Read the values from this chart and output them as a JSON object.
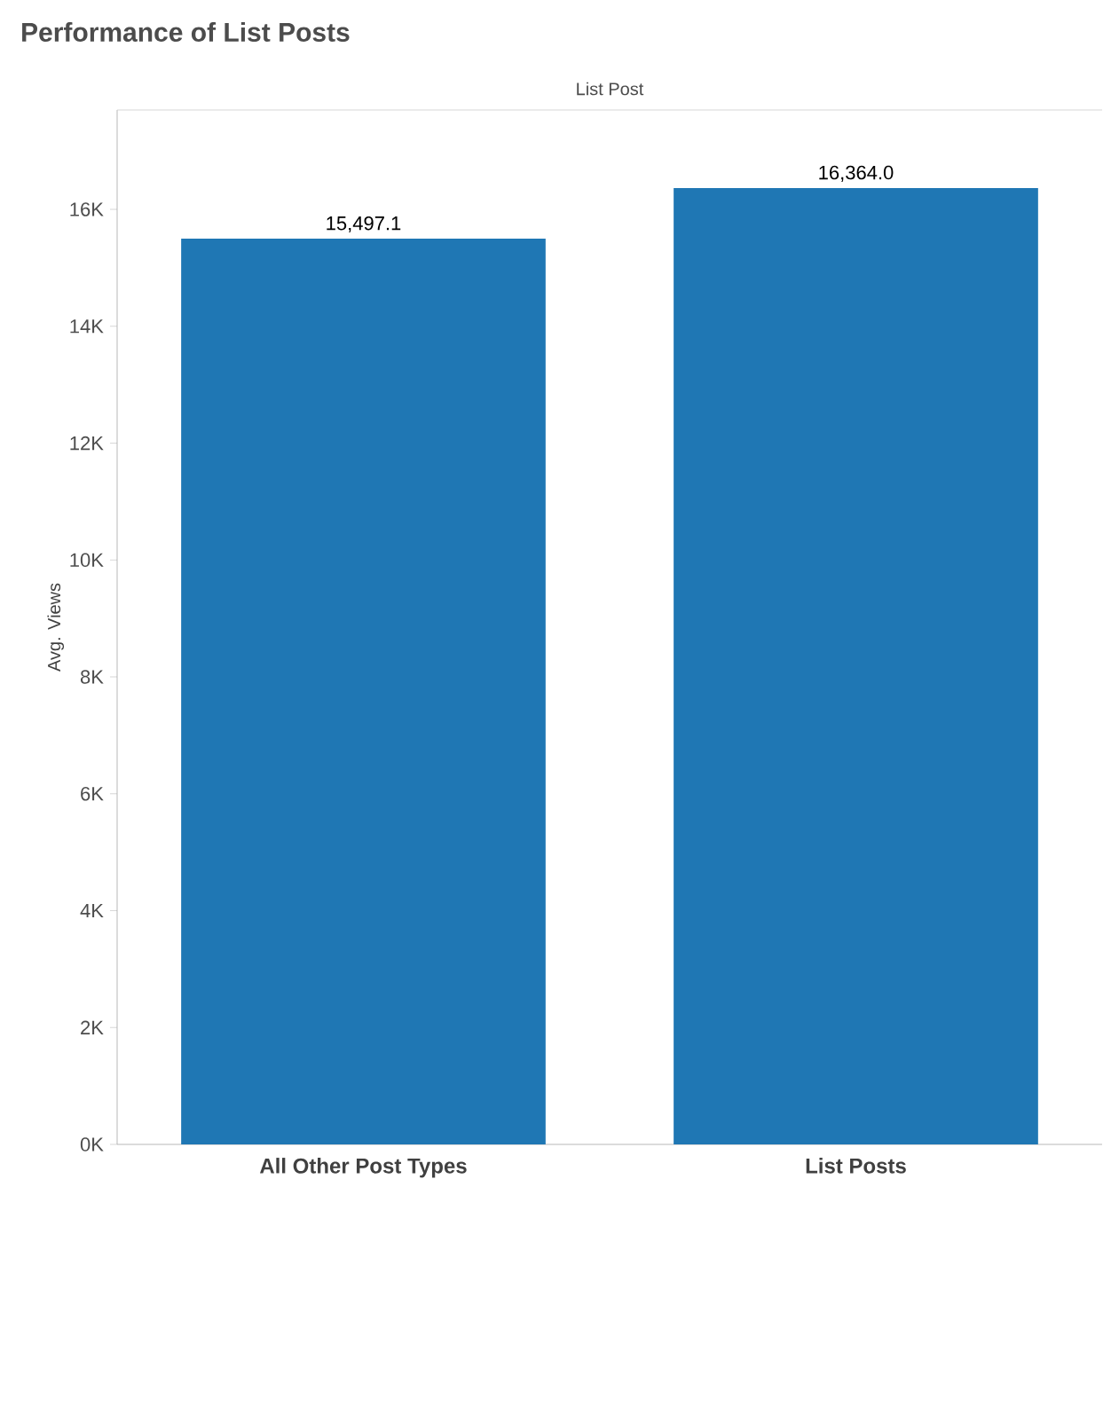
{
  "chart_data": {
    "type": "bar",
    "title": "Performance of List Posts",
    "subtitle": "List Post",
    "ylabel": "Avg. Views",
    "categories": [
      "All Other Post Types",
      "List Posts"
    ],
    "values": [
      15497.1,
      16364.0
    ],
    "value_labels": [
      "15,497.1",
      "16,364.0"
    ],
    "color": "#1f77b4",
    "ylim": [
      0,
      17700
    ],
    "yticks": [
      {
        "value": 0,
        "label": "0K"
      },
      {
        "value": 2000,
        "label": "2K"
      },
      {
        "value": 4000,
        "label": "4K"
      },
      {
        "value": 6000,
        "label": "6K"
      },
      {
        "value": 8000,
        "label": "8K"
      },
      {
        "value": 10000,
        "label": "10K"
      },
      {
        "value": 12000,
        "label": "12K"
      },
      {
        "value": 14000,
        "label": "14K"
      },
      {
        "value": 16000,
        "label": "16K"
      }
    ],
    "grid": false
  }
}
